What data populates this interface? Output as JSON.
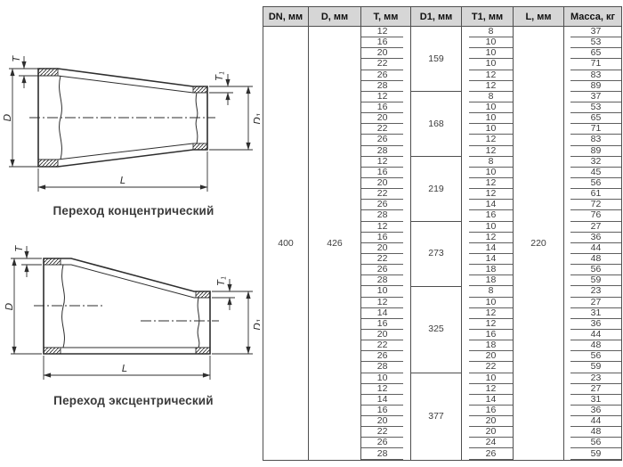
{
  "drawings": {
    "concentric": {
      "caption": "Переход концентрический"
    },
    "eccentric": {
      "caption": "Переход эксцентрический"
    },
    "dim_labels": {
      "t": "T",
      "d": "D",
      "l": "L",
      "sub1": "1"
    }
  },
  "table": {
    "headers": [
      "DN, мм",
      "D, мм",
      "T, мм",
      "D1, мм",
      "T1, мм",
      "L, мм",
      "Масса, кг"
    ],
    "dn": "400",
    "d": "426",
    "l": "220",
    "groups": [
      {
        "d1": "159",
        "rows": [
          [
            "12",
            "8",
            "37"
          ],
          [
            "16",
            "10",
            "53"
          ],
          [
            "20",
            "10",
            "65"
          ],
          [
            "22",
            "10",
            "71"
          ],
          [
            "26",
            "12",
            "83"
          ],
          [
            "28",
            "12",
            "89"
          ]
        ]
      },
      {
        "d1": "168",
        "rows": [
          [
            "12",
            "8",
            "37"
          ],
          [
            "16",
            "10",
            "53"
          ],
          [
            "20",
            "10",
            "65"
          ],
          [
            "22",
            "10",
            "71"
          ],
          [
            "26",
            "12",
            "83"
          ],
          [
            "28",
            "12",
            "89"
          ]
        ]
      },
      {
        "d1": "219",
        "rows": [
          [
            "12",
            "8",
            "32"
          ],
          [
            "16",
            "10",
            "45"
          ],
          [
            "20",
            "12",
            "56"
          ],
          [
            "22",
            "12",
            "61"
          ],
          [
            "26",
            "14",
            "72"
          ],
          [
            "28",
            "16",
            "76"
          ]
        ]
      },
      {
        "d1": "273",
        "rows": [
          [
            "12",
            "10",
            "27"
          ],
          [
            "16",
            "12",
            "36"
          ],
          [
            "20",
            "14",
            "44"
          ],
          [
            "22",
            "14",
            "48"
          ],
          [
            "26",
            "18",
            "56"
          ],
          [
            "28",
            "18",
            "59"
          ]
        ]
      },
      {
        "d1": "325",
        "rows": [
          [
            "10",
            "8",
            "23"
          ],
          [
            "12",
            "10",
            "27"
          ],
          [
            "14",
            "12",
            "31"
          ],
          [
            "16",
            "12",
            "36"
          ],
          [
            "20",
            "16",
            "44"
          ],
          [
            "22",
            "18",
            "48"
          ],
          [
            "26",
            "20",
            "56"
          ],
          [
            "28",
            "22",
            "59"
          ]
        ]
      },
      {
        "d1": "377",
        "rows": [
          [
            "10",
            "10",
            "23"
          ],
          [
            "12",
            "12",
            "27"
          ],
          [
            "14",
            "14",
            "31"
          ],
          [
            "16",
            "16",
            "36"
          ],
          [
            "20",
            "20",
            "44"
          ],
          [
            "22",
            "20",
            "48"
          ],
          [
            "26",
            "24",
            "56"
          ],
          [
            "28",
            "26",
            "59"
          ]
        ]
      }
    ]
  }
}
